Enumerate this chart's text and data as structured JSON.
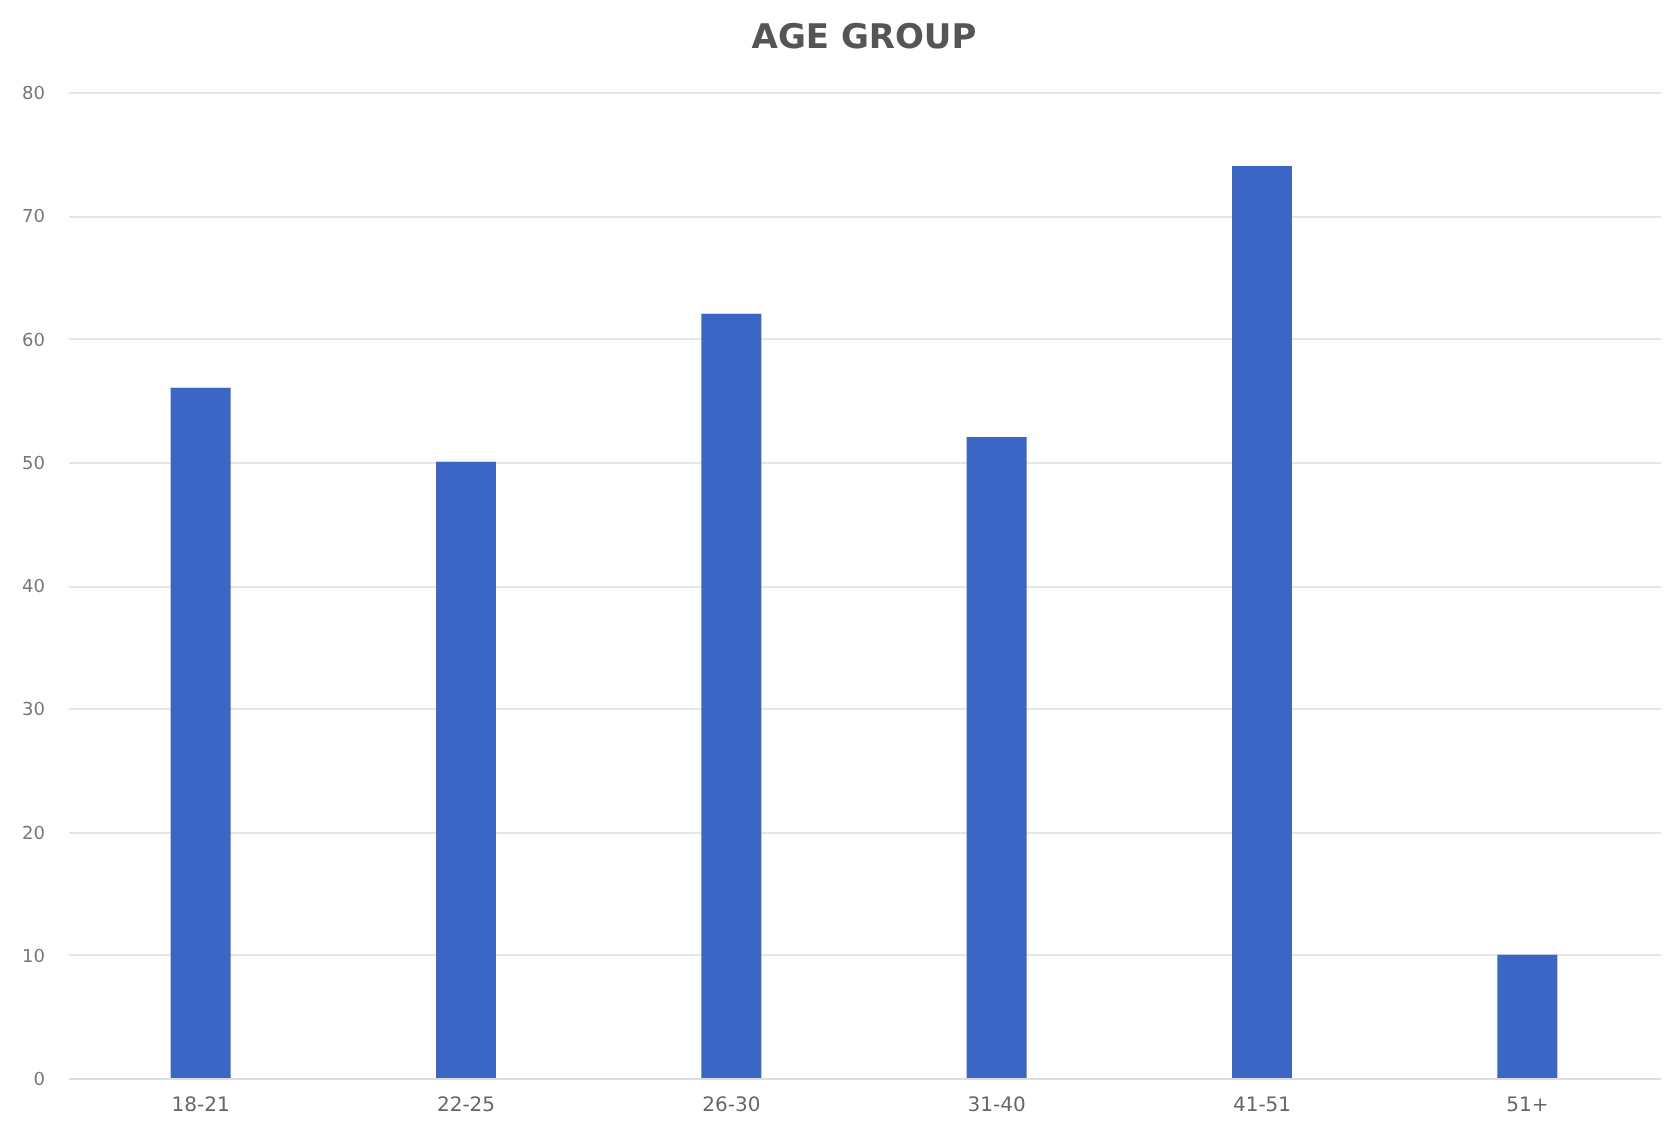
{
  "chart_data": {
    "type": "bar",
    "title": "AGE GROUP",
    "categories": [
      "18-21",
      "22-25",
      "26-30",
      "31-40",
      "41-51",
      "51+"
    ],
    "values": [
      56,
      50,
      62,
      52,
      74,
      10
    ],
    "color": "#3b66c6",
    "ylim": [
      0,
      80
    ],
    "yticks": [
      0,
      10,
      20,
      30,
      40,
      50,
      60,
      70,
      80
    ],
    "grid": "y"
  }
}
